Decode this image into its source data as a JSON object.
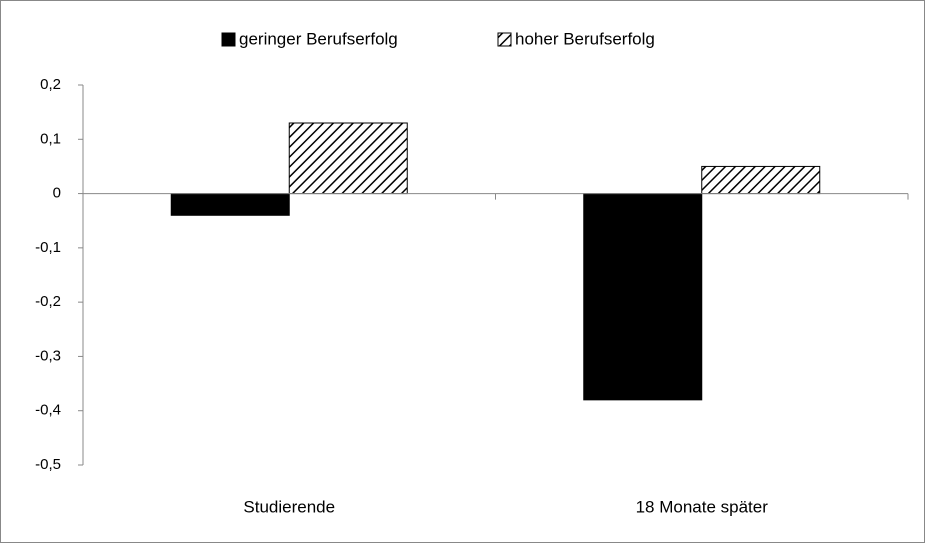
{
  "chart_data": {
    "type": "bar",
    "categories": [
      "Studierende",
      "18 Monate später"
    ],
    "series": [
      {
        "name": "geringer Berufserfolg",
        "color": "#000000",
        "pattern": "solid",
        "values": [
          -0.04,
          -0.38
        ]
      },
      {
        "name": "hoher Berufserfolg",
        "color": "#000000",
        "pattern": "hatch",
        "values": [
          0.13,
          0.05
        ]
      }
    ],
    "ylim": [
      -0.5,
      0.2
    ],
    "yticks": [
      {
        "value": 0.2,
        "label": "0,2"
      },
      {
        "value": 0.1,
        "label": "0,1"
      },
      0,
      {
        "value": -0.1,
        "label": "-0,1"
      },
      {
        "value": -0.2,
        "label": "-0,2"
      },
      {
        "value": -0.3,
        "label": "-0,3"
      },
      {
        "value": -0.4,
        "label": "-0,4"
      },
      {
        "value": -0.5,
        "label": "-0,5"
      }
    ],
    "grid": false,
    "legend": "top"
  }
}
